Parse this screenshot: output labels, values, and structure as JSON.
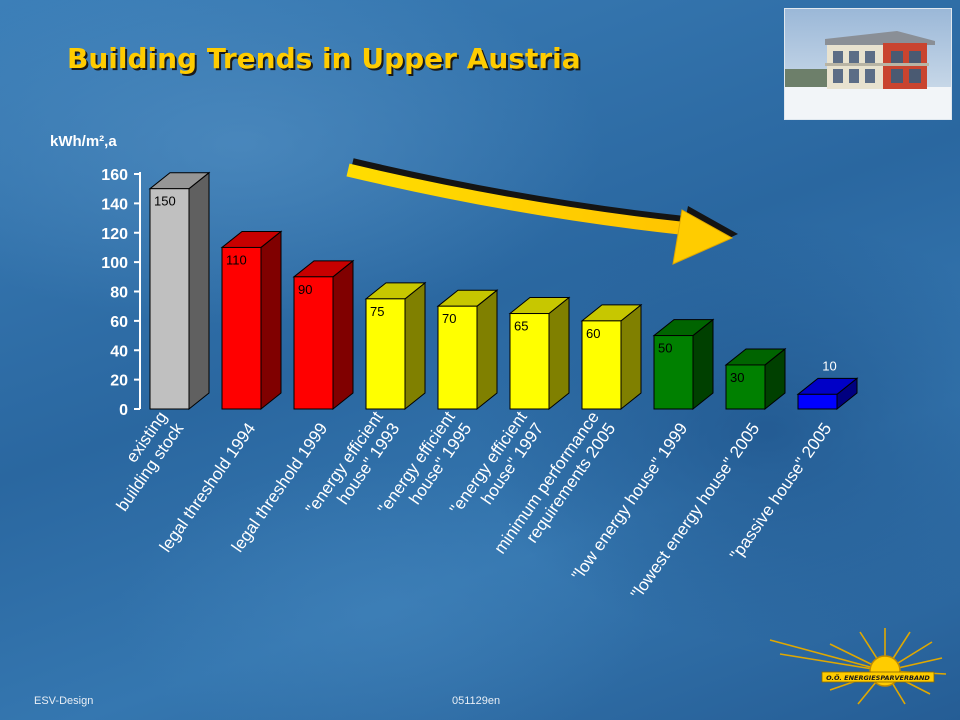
{
  "title": "Building Trends in Upper Austria",
  "footer": {
    "left": "ESV-Design",
    "right": "051129en"
  },
  "logo": {
    "text": "O.Ö. ENERGIESPARVERBAND",
    "icon": "sun-logo-icon"
  },
  "photo": {
    "icon": "house-photo"
  },
  "colors": {
    "grey": "#c0c0c0",
    "red": "#ff0000",
    "yellow": "#ffff00",
    "green": "#008000",
    "blue": "#0000ff",
    "title": "#ffcc00",
    "arrow": "#ffcc00"
  },
  "chart_data": {
    "type": "bar",
    "title": "",
    "ylabel": "kWh/m²,a",
    "xlabel": "",
    "ylim": [
      0,
      160
    ],
    "yticks": [
      0,
      20,
      40,
      60,
      80,
      100,
      120,
      140,
      160
    ],
    "grid": false,
    "categories": [
      [
        "existing",
        "building stock"
      ],
      [
        "legal threshold 1994"
      ],
      [
        "legal threshold 1999"
      ],
      [
        "\"energy efficient",
        "house\" 1993"
      ],
      [
        "\"energy efficient",
        "house\" 1995"
      ],
      [
        "\"energy efficient",
        "house\" 1997"
      ],
      [
        "minimum performance",
        "requirements 2005"
      ],
      [
        "\"low energy house\" 1999"
      ],
      [
        "\"lowest energy house\" 2005"
      ],
      [
        "\"passive house\" 2005"
      ]
    ],
    "values": [
      150,
      110,
      90,
      75,
      70,
      65,
      60,
      50,
      30,
      10
    ],
    "bar_colors": [
      "grey",
      "red",
      "red",
      "yellow",
      "yellow",
      "yellow",
      "yellow",
      "green",
      "green",
      "blue"
    ],
    "annotation": "downward trend arrow"
  }
}
